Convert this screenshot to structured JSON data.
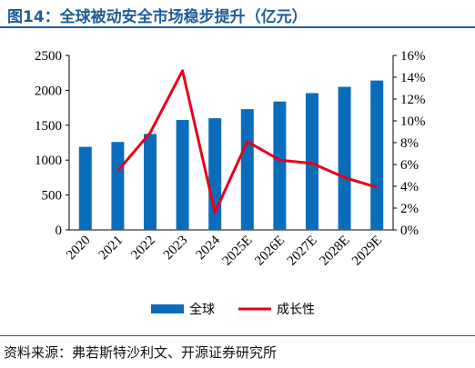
{
  "header": {
    "title": "图14：全球被动安全市场稳步提升（亿元）"
  },
  "footer": {
    "source": "资料来源：弗若斯特沙利文、开源证券研究所"
  },
  "colors": {
    "bar": "#0a6dbc",
    "line": "#e6001a",
    "title": "#1f5c99"
  },
  "chart_data": {
    "type": "bar",
    "categories": [
      "2020",
      "2021",
      "2022",
      "2023",
      "2024",
      "2025E",
      "2026E",
      "2027E",
      "2028E",
      "2029E"
    ],
    "series": [
      {
        "name": "全球",
        "type": "bar",
        "axis": "left",
        "values": [
          1190,
          1260,
          1375,
          1575,
          1600,
          1730,
          1840,
          1960,
          2050,
          2140
        ]
      },
      {
        "name": "成长性",
        "type": "line",
        "axis": "right",
        "values": [
          null,
          5.4,
          8.9,
          14.6,
          1.6,
          8.1,
          6.4,
          6.1,
          4.8,
          3.9
        ]
      }
    ],
    "ylim_left": [
      0,
      2500
    ],
    "yticks_left": [
      "0",
      "500",
      "1000",
      "1500",
      "2000",
      "2500"
    ],
    "ylim_right": [
      0,
      16
    ],
    "yticks_right": [
      "0%",
      "2%",
      "4%",
      "6%",
      "8%",
      "10%",
      "12%",
      "14%",
      "16%"
    ],
    "legend_position": "bottom",
    "grid": false
  }
}
